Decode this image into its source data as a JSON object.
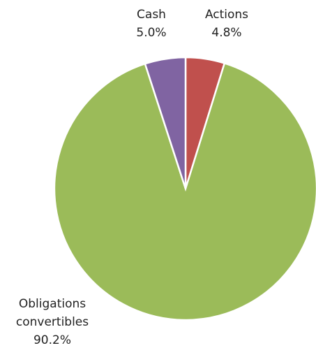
{
  "chart_data": {
    "type": "pie",
    "categories": [
      "Actions",
      "Obligations convertibles",
      "Cash"
    ],
    "values": [
      4.8,
      90.2,
      5.0
    ],
    "value_labels": [
      "4.8%",
      "90.2%",
      "5.0%"
    ],
    "colors": [
      "#c0504d",
      "#9bbb59",
      "#8064a2"
    ]
  }
}
